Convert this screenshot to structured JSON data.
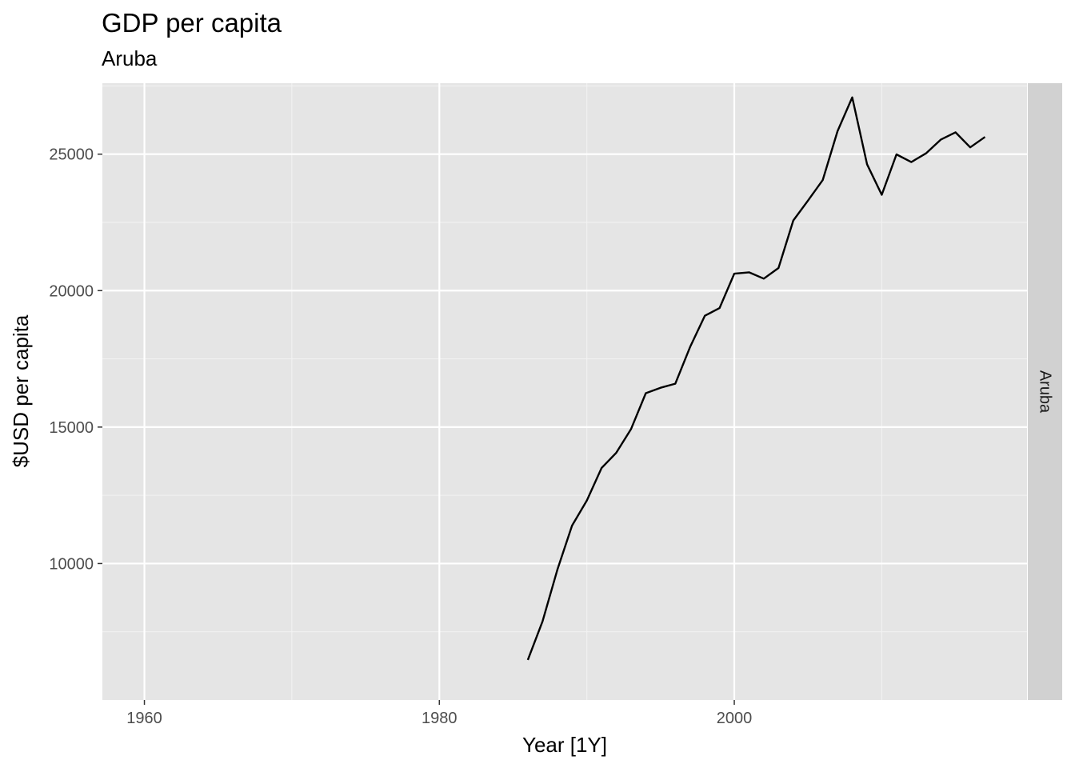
{
  "colors": {
    "panel_background": "#e5e5e5",
    "grid_major": "#ffffff",
    "grid_minor": "#f2f2f2",
    "strip_background": "#d1d1d1",
    "line": "#000000",
    "tick_text": "#4d4d4d"
  },
  "chart_data": {
    "type": "line",
    "title": "GDP per capita",
    "subtitle": "Aruba",
    "xlabel": "Year [1Y]",
    "ylabel": "$USD per capita",
    "facet_label": "Aruba",
    "xlim": [
      1957.15,
      2019.85
    ],
    "ylim": [
      5000,
      27600
    ],
    "x_ticks": [
      1960,
      1980,
      2000
    ],
    "x_tick_labels": [
      "1960",
      "1980",
      "2000"
    ],
    "x_minor_ticks": [
      1970,
      1990,
      2010
    ],
    "y_ticks": [
      10000,
      15000,
      20000,
      25000
    ],
    "y_tick_labels": [
      "10000",
      "15000",
      "20000",
      "25000"
    ],
    "y_minor_ticks": [
      7500,
      12500,
      17500,
      22500,
      27500
    ],
    "grid": true,
    "legend": "none",
    "x": [
      1986,
      1987,
      1988,
      1989,
      1990,
      1991,
      1992,
      1993,
      1994,
      1995,
      1996,
      1997,
      1998,
      1999,
      2000,
      2001,
      2002,
      2003,
      2004,
      2005,
      2006,
      2007,
      2008,
      2009,
      2010,
      2011,
      2012,
      2013,
      2014,
      2015,
      2016,
      2017
    ],
    "values": [
      6470,
      7880,
      9770,
      11390,
      12310,
      13500,
      14060,
      14930,
      16240,
      16440,
      16590,
      17930,
      19080,
      19360,
      20620,
      20670,
      20440,
      20830,
      22570,
      23300,
      24050,
      25840,
      27080,
      24630,
      23510,
      24990,
      24710,
      25030,
      25530,
      25800,
      25250,
      25630
    ]
  }
}
